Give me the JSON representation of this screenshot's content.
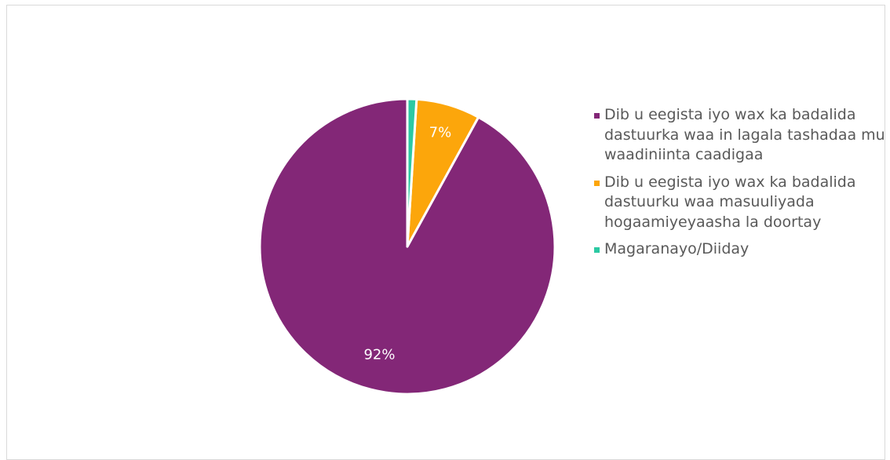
{
  "chart_data": {
    "type": "pie",
    "title": "",
    "slices": [
      {
        "label": "Dib u eegista iyo wax ka badalida dastuurka waa in lagala tashadaa mu waadiniinta caadigaa",
        "value": 92,
        "display": "92%",
        "color": "#832777"
      },
      {
        "label": "Dib u eegista iyo wax ka badalida dastuurku waa masuuliyada hogaamiyeyaasha la doortay",
        "value": 7,
        "display": "7%",
        "color": "#FCA60B"
      },
      {
        "label": "Magaranayo/Diiday",
        "value": 1,
        "display": "",
        "color": "#2CC9A3"
      }
    ],
    "legend_position": "right",
    "start_angle": "12 o'clock",
    "direction": "counter-clockwise",
    "label_color": "#ffffff",
    "legend_text_color": "#595959"
  }
}
